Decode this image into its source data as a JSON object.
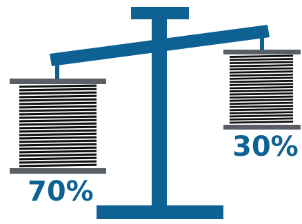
{
  "colors": {
    "accent": "#0d6293",
    "plate": "#5a5f66",
    "coil": "#111111",
    "background": "#ffffff"
  },
  "icon": "balance-scale-icon",
  "scale": {
    "left_weight": {
      "label": "70%",
      "value": 70
    },
    "right_weight": {
      "label": "30%",
      "value": 30
    }
  }
}
